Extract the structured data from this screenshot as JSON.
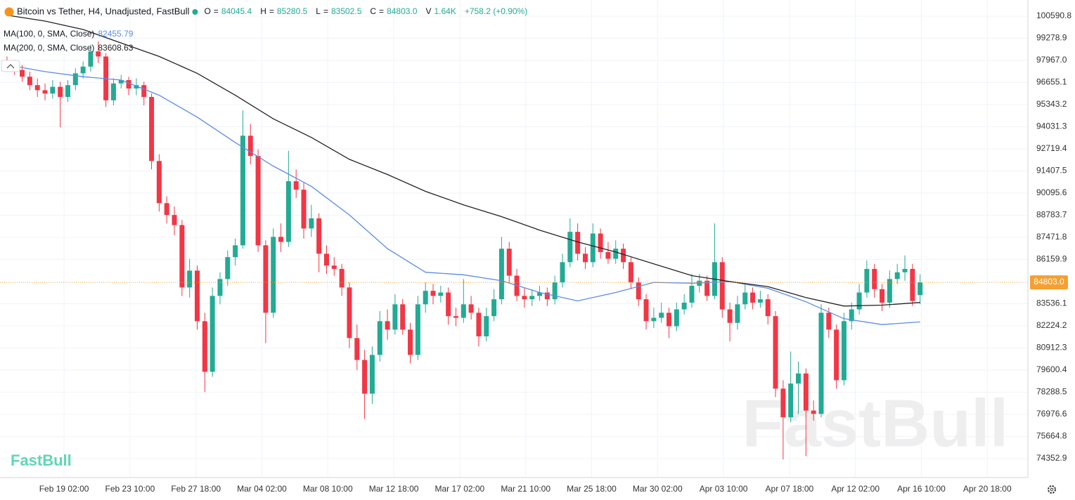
{
  "chart_data": {
    "type": "candlestick",
    "title": "Bitcoin vs Tether, H4, Unadjusted, FastBull",
    "header": [
      {
        "label": "O",
        "value": "84045.4"
      },
      {
        "label": "H",
        "value": "85280.5"
      },
      {
        "label": "L",
        "value": "83502.5"
      },
      {
        "label": "C",
        "value": "84803.0"
      },
      {
        "label": "V",
        "value": "1.64K"
      }
    ],
    "change": "+758.2 (+0.90%)",
    "x": [
      "Feb 15 08:00",
      "Feb 15 20:00",
      "Feb 16 08:00",
      "Feb 16 20:00",
      "Feb 17 08:00",
      "Feb 17 20:00",
      "Feb 18 08:00",
      "Feb 18 20:00",
      "Feb 19 08:00",
      "Feb 19 20:00",
      "Feb 20 08:00",
      "Feb 20 20:00",
      "Feb 21 08:00",
      "Feb 21 20:00",
      "Feb 22 08:00",
      "Feb 22 20:00",
      "Feb 23 08:00",
      "Feb 23 20:00",
      "Feb 24 08:00",
      "Feb 24 20:00",
      "Feb 25 08:00",
      "Feb 25 20:00",
      "Feb 26 08:00",
      "Feb 26 20:00",
      "Feb 27 08:00",
      "Feb 27 20:00",
      "Feb 28 08:00",
      "Feb 28 20:00",
      "Mar 01 08:00",
      "Mar 01 20:00",
      "Mar 02 08:00",
      "Mar 02 20:00",
      "Mar 03 08:00",
      "Mar 03 20:00",
      "Mar 04 08:00",
      "Mar 04 20:00",
      "Mar 05 08:00",
      "Mar 05 20:00",
      "Mar 06 08:00",
      "Mar 06 20:00",
      "Mar 07 08:00",
      "Mar 07 20:00",
      "Mar 08 08:00",
      "Mar 08 20:00",
      "Mar 09 08:00",
      "Mar 09 20:00",
      "Mar 10 08:00",
      "Mar 10 20:00",
      "Mar 11 08:00",
      "Mar 11 20:00",
      "Mar 12 08:00",
      "Mar 12 20:00",
      "Mar 13 08:00",
      "Mar 13 20:00",
      "Mar 14 08:00",
      "Mar 14 20:00",
      "Mar 15 08:00",
      "Mar 15 20:00",
      "Mar 16 08:00",
      "Mar 16 20:00",
      "Mar 17 08:00",
      "Mar 17 20:00",
      "Mar 18 08:00",
      "Mar 18 20:00",
      "Mar 19 08:00",
      "Mar 19 20:00",
      "Mar 20 08:00",
      "Mar 20 20:00",
      "Mar 21 08:00",
      "Mar 21 20:00",
      "Mar 22 08:00",
      "Mar 22 20:00",
      "Mar 23 08:00",
      "Mar 23 20:00",
      "Mar 24 08:00",
      "Mar 24 20:00",
      "Mar 25 08:00",
      "Mar 25 20:00",
      "Mar 26 08:00",
      "Mar 26 20:00",
      "Mar 27 08:00",
      "Mar 27 20:00",
      "Mar 28 08:00",
      "Mar 28 20:00",
      "Mar 29 08:00",
      "Mar 29 20:00",
      "Mar 30 08:00",
      "Mar 30 20:00",
      "Mar 31 08:00",
      "Mar 31 20:00",
      "Apr 01 08:00",
      "Apr 01 20:00",
      "Apr 02 08:00",
      "Apr 02 20:00",
      "Apr 03 08:00",
      "Apr 03 20:00",
      "Apr 04 08:00",
      "Apr 04 20:00",
      "Apr 05 08:00",
      "Apr 05 20:00",
      "Apr 06 08:00",
      "Apr 06 20:00",
      "Apr 07 08:00",
      "Apr 07 20:00",
      "Apr 08 08:00",
      "Apr 08 20:00",
      "Apr 09 08:00",
      "Apr 09 20:00",
      "Apr 10 08:00",
      "Apr 10 20:00",
      "Apr 11 08:00",
      "Apr 11 20:00",
      "Apr 12 08:00",
      "Apr 12 20:00",
      "Apr 13 08:00",
      "Apr 13 20:00",
      "Apr 14 08:00",
      "Apr 14 20:00",
      "Apr 15 08:00",
      "Apr 15 20:00",
      "Apr 16 08:00"
    ],
    "open": [
      97900,
      97700,
      97400,
      97000,
      96500,
      96200,
      96000,
      96400,
      95800,
      96500,
      97200,
      97600,
      98500,
      98200,
      95600,
      96600,
      96800,
      96300,
      96500,
      95800,
      92000,
      89500,
      88800,
      88200,
      84500,
      85500,
      82500,
      79500,
      84000,
      85000,
      86300,
      87000,
      93500,
      92300,
      87000,
      83000,
      87500,
      87200,
      90800,
      90300,
      88000,
      88600,
      86500,
      85800,
      85600,
      84500,
      81500,
      80200,
      78200,
      80500,
      82500,
      82000,
      83500,
      82000,
      80500,
      83500,
      84300,
      84000,
      84200,
      82800,
      82700,
      83500,
      83000,
      81600,
      82800,
      83800,
      86800,
      85200,
      84000,
      83800,
      84000,
      84200,
      83800,
      84800,
      86000,
      87800,
      86500,
      86000,
      87700,
      86600,
      86200,
      86800,
      86000,
      84800,
      83800,
      82500,
      82700,
      83000,
      82200,
      83200,
      83600,
      84600,
      84900,
      84000,
      86000,
      83200,
      82400,
      83500,
      84200,
      83600,
      83800,
      82800,
      78500,
      76800,
      78800,
      79400,
      77200,
      77000,
      83000,
      82000,
      79000,
      82500,
      83200,
      84200,
      85600,
      84400,
      83600,
      85000,
      85400,
      85600,
      84045.4
    ],
    "high": [
      98200,
      98000,
      97700,
      97300,
      96900,
      96600,
      96800,
      96700,
      96800,
      97500,
      97900,
      98900,
      99100,
      98400,
      96900,
      97100,
      97000,
      96900,
      96700,
      96000,
      92400,
      89900,
      89300,
      88500,
      86200,
      85800,
      83000,
      84500,
      85400,
      86700,
      87400,
      95000,
      94200,
      92700,
      87300,
      88000,
      88300,
      92600,
      91500,
      90700,
      89400,
      88900,
      87000,
      86300,
      85900,
      84800,
      82300,
      80800,
      81000,
      83100,
      83200,
      84100,
      83800,
      82400,
      84000,
      84800,
      84700,
      84600,
      84500,
      83300,
      85000,
      84000,
      83300,
      83300,
      84400,
      87500,
      87200,
      85600,
      84500,
      84400,
      84600,
      84500,
      85200,
      86500,
      88600,
      88300,
      86900,
      88300,
      88000,
      87200,
      87300,
      87100,
      86300,
      85100,
      84100,
      83300,
      83600,
      83300,
      83600,
      84100,
      85300,
      85300,
      85200,
      88300,
      86300,
      83600,
      84000,
      84700,
      84500,
      84300,
      84100,
      83100,
      79000,
      80700,
      80100,
      79700,
      77800,
      83500,
      83300,
      82300,
      83000,
      83600,
      84700,
      86100,
      85900,
      84700,
      85500,
      85900,
      86400,
      85900,
      85280.5
    ],
    "low": [
      97300,
      97100,
      96700,
      96200,
      95800,
      95600,
      95700,
      94000,
      95500,
      96200,
      96900,
      97300,
      97800,
      95200,
      95300,
      96300,
      95900,
      95900,
      95300,
      91500,
      89000,
      88300,
      87600,
      84000,
      83900,
      82000,
      78300,
      79200,
      83500,
      84600,
      85800,
      86800,
      91800,
      86600,
      81200,
      82700,
      86600,
      86900,
      89800,
      87400,
      87500,
      85400,
      85300,
      85200,
      84000,
      80900,
      79600,
      76700,
      77600,
      80100,
      81400,
      81700,
      81700,
      80000,
      80200,
      83000,
      83500,
      83600,
      82300,
      82200,
      82400,
      82600,
      81000,
      81300,
      82500,
      83500,
      84800,
      83700,
      83300,
      83400,
      83700,
      83400,
      83500,
      84500,
      85700,
      86100,
      85600,
      85700,
      86200,
      85900,
      85900,
      85600,
      84400,
      83400,
      82000,
      82100,
      82400,
      81500,
      81900,
      82900,
      83300,
      84200,
      83700,
      83800,
      82700,
      81300,
      82000,
      83200,
      83200,
      83300,
      82300,
      78000,
      74300,
      76500,
      77000,
      74500,
      76600,
      76800,
      81500,
      78500,
      78700,
      82000,
      82900,
      83900,
      83900,
      83100,
      83300,
      84700,
      84900,
      83400,
      83502.5
    ],
    "close": [
      97700,
      97400,
      97000,
      96500,
      96200,
      96000,
      96400,
      95800,
      96500,
      97200,
      97600,
      98500,
      98200,
      95600,
      96600,
      96800,
      96300,
      96500,
      95800,
      92000,
      89500,
      88800,
      88200,
      84500,
      85500,
      82500,
      79500,
      84000,
      85000,
      86300,
      87000,
      93500,
      92300,
      87000,
      83000,
      87500,
      87200,
      90800,
      90300,
      88000,
      88600,
      86500,
      85800,
      85600,
      84500,
      81500,
      80200,
      78200,
      80500,
      82500,
      82000,
      83500,
      82000,
      80500,
      83500,
      84300,
      84000,
      84200,
      82800,
      82700,
      83500,
      83000,
      81600,
      82800,
      83800,
      86800,
      85200,
      84000,
      83800,
      84000,
      84200,
      83800,
      84800,
      86000,
      87800,
      86500,
      86000,
      87700,
      86600,
      86200,
      86800,
      86000,
      84800,
      83800,
      82500,
      82700,
      83000,
      82200,
      83200,
      83600,
      84600,
      84900,
      84000,
      86000,
      83200,
      82400,
      83500,
      84200,
      83600,
      83800,
      82800,
      78500,
      76800,
      78800,
      79400,
      77200,
      77000,
      83000,
      82000,
      79000,
      82500,
      83200,
      84200,
      85600,
      84400,
      83600,
      85000,
      85400,
      85600,
      83700,
      84803
    ],
    "up_color": "#22ab94",
    "down_color": "#f23645",
    "series": [
      {
        "name": "MA(100, 0, SMA, Close)",
        "color": "#5b8be8",
        "x": [
          "Feb 15 08:00",
          "Feb 17 20:00",
          "Feb 20 08:00",
          "Feb 22 20:00",
          "Feb 25 08:00",
          "Feb 27 20:00",
          "Mar 02 08:00",
          "Mar 04 20:00",
          "Mar 07 08:00",
          "Mar 09 20:00",
          "Mar 12 08:00",
          "Mar 14 20:00",
          "Mar 17 08:00",
          "Mar 19 20:00",
          "Mar 22 08:00",
          "Mar 24 20:00",
          "Mar 27 08:00",
          "Mar 29 20:00",
          "Apr 01 08:00",
          "Apr 03 20:00",
          "Apr 06 08:00",
          "Apr 08 20:00",
          "Apr 11 08:00",
          "Apr 13 20:00",
          "Apr 16 08:00"
        ],
        "values": [
          97700,
          97300,
          97000,
          96800,
          95900,
          94600,
          93100,
          91700,
          90500,
          88800,
          86800,
          85400,
          85250,
          84900,
          84200,
          83700,
          84200,
          84800,
          84750,
          84850,
          84450,
          83650,
          82650,
          82300,
          82455.79
        ]
      },
      {
        "name": "MA(200, 0, SMA, Close)",
        "color": "#222222",
        "x": [
          "Feb 15 08:00",
          "Feb 17 20:00",
          "Feb 20 08:00",
          "Feb 22 20:00",
          "Feb 25 08:00",
          "Feb 27 20:00",
          "Mar 02 08:00",
          "Mar 04 20:00",
          "Mar 07 08:00",
          "Mar 09 20:00",
          "Mar 12 08:00",
          "Mar 14 20:00",
          "Mar 17 08:00",
          "Mar 19 20:00",
          "Mar 22 08:00",
          "Mar 24 20:00",
          "Mar 27 08:00",
          "Mar 29 20:00",
          "Apr 01 08:00",
          "Apr 03 20:00",
          "Apr 06 08:00",
          "Apr 08 20:00",
          "Apr 11 08:00",
          "Apr 13 20:00",
          "Apr 16 08:00"
        ],
        "values": [
          100650,
          100300,
          99800,
          99000,
          98200,
          97200,
          95900,
          94500,
          93400,
          92100,
          91200,
          90200,
          89400,
          88700,
          87900,
          87200,
          86600,
          85900,
          85200,
          84850,
          84550,
          83900,
          83400,
          83450,
          83608.63
        ]
      }
    ],
    "last_price": {
      "value": 84803,
      "label": "84803.0",
      "color": "#f5a030"
    },
    "ylim": [
      73227,
      101549
    ],
    "yticks": [
      100590.8,
      99278.9,
      {
        "value": 97967,
        "label": "97967.0"
      },
      96655.1,
      95343.2,
      94031.3,
      92719.4,
      91407.5,
      90095.6,
      88783.7,
      87471.8,
      86159.9,
      83536.1,
      82224.2,
      80912.3,
      79600.4,
      78288.5,
      76976.6,
      75664.8,
      74352.9
    ],
    "xlim": [
      "Feb 14 21:00",
      "Apr 23 10:00"
    ],
    "xticks": [
      "Feb 19 02:00",
      "Feb 23 10:00",
      "Feb 27 18:00",
      "Mar 04 02:00",
      "Mar 08 10:00",
      "Mar 12 18:00",
      "Mar 17 02:00",
      "Mar 21 10:00",
      "Mar 25 18:00",
      "Mar 30 02:00",
      "Apr 03 10:00",
      "Apr 07 18:00",
      "Apr 12 02:00",
      "Apr 16 10:00",
      "Apr 20 18:00"
    ],
    "grid": true,
    "watermark": "FastBull",
    "logo": "FastBull"
  }
}
